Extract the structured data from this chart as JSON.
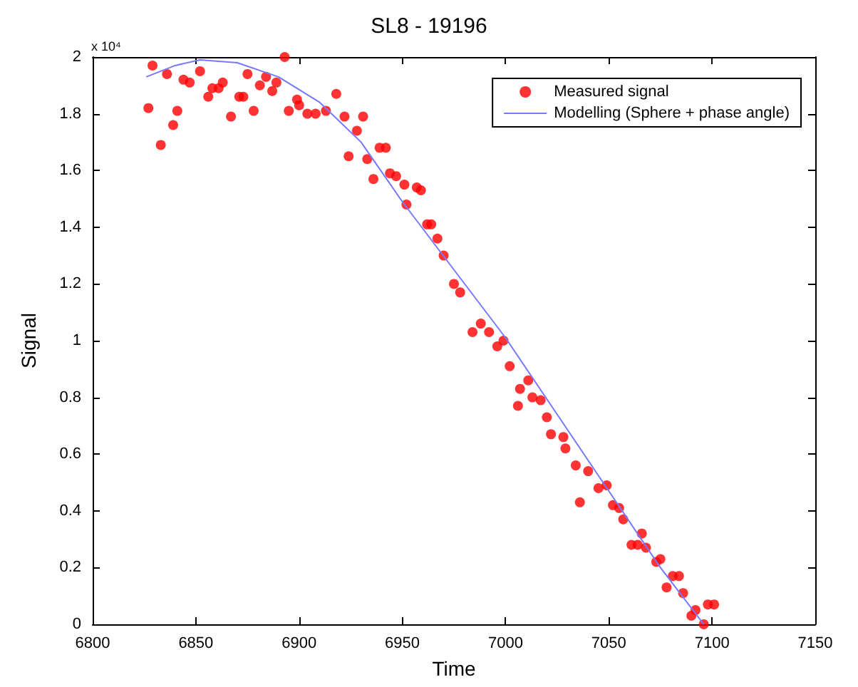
{
  "chart_data": {
    "type": "scatter",
    "title": "SL8 - 19196",
    "xlabel": "Time",
    "ylabel": "Signal",
    "annotations": [
      "x 10⁴"
    ],
    "xlim": [
      6800,
      7150
    ],
    "xticks": [
      6800,
      6850,
      6900,
      6950,
      7000,
      7050,
      7100,
      7150
    ],
    "ylim": [
      0,
      2
    ],
    "yticks": [
      0,
      0.2,
      0.4,
      0.6,
      0.8,
      1,
      1.2,
      1.4,
      1.6,
      1.8,
      2
    ],
    "grid": false,
    "legend": "top right",
    "series": [
      {
        "name": "Measured signal",
        "marker": "circle",
        "color": "#ff0000",
        "x": [
          6829,
          6827,
          6833,
          6836,
          6839,
          6841,
          6844,
          6847,
          6852,
          6856,
          6858,
          6861,
          6863,
          6867,
          6871,
          6873,
          6875,
          6878,
          6881,
          6884,
          6887,
          6889,
          6893,
          6895,
          6899,
          6900,
          6904,
          6908,
          6913,
          6918,
          6922,
          6924,
          6928,
          6931,
          6933,
          6936,
          6939,
          6942,
          6944,
          6947,
          6951,
          6952,
          6957,
          6959,
          6962,
          6964,
          6967,
          6970,
          6975,
          6978,
          6984,
          6988,
          6992,
          6996,
          6999,
          7002,
          7006,
          7007,
          7011,
          7013,
          7017,
          7020,
          7022,
          7028,
          7029,
          7034,
          7036,
          7040,
          7045,
          7049,
          7052,
          7055,
          7057,
          7061,
          7064,
          7066,
          7068,
          7073,
          7075,
          7078,
          7081,
          7084,
          7086,
          7090,
          7092,
          7096,
          7098,
          7101
        ],
        "values": [
          1.97,
          1.82,
          1.69,
          1.94,
          1.76,
          1.81,
          1.92,
          1.91,
          1.95,
          1.86,
          1.89,
          1.89,
          1.91,
          1.79,
          1.86,
          1.86,
          1.94,
          1.81,
          1.9,
          1.93,
          1.88,
          1.91,
          2.0,
          1.81,
          1.85,
          1.83,
          1.8,
          1.8,
          1.81,
          1.87,
          1.79,
          1.65,
          1.74,
          1.79,
          1.64,
          1.57,
          1.68,
          1.68,
          1.59,
          1.58,
          1.55,
          1.48,
          1.54,
          1.53,
          1.41,
          1.41,
          1.36,
          1.3,
          1.2,
          1.17,
          1.03,
          1.06,
          1.03,
          0.98,
          1.0,
          0.91,
          0.77,
          0.83,
          0.86,
          0.8,
          0.79,
          0.73,
          0.67,
          0.66,
          0.62,
          0.56,
          0.43,
          0.54,
          0.48,
          0.49,
          0.42,
          0.41,
          0.37,
          0.28,
          0.28,
          0.32,
          0.27,
          0.22,
          0.23,
          0.13,
          0.17,
          0.17,
          0.11,
          0.03,
          0.05,
          0.0,
          0.07,
          0.07
        ]
      },
      {
        "name": "Modelling (Sphere + phase angle)",
        "type": "line",
        "marker": "none",
        "color": "#7777ff",
        "x": [
          6826,
          6840,
          6852,
          6870,
          6890,
          6910,
          6930,
          6950,
          6975,
          7000,
          7025,
          7050,
          7075,
          7096
        ],
        "values": [
          1.93,
          1.97,
          1.99,
          1.98,
          1.93,
          1.84,
          1.7,
          1.49,
          1.25,
          1.01,
          0.74,
          0.47,
          0.2,
          0.0
        ]
      }
    ]
  }
}
